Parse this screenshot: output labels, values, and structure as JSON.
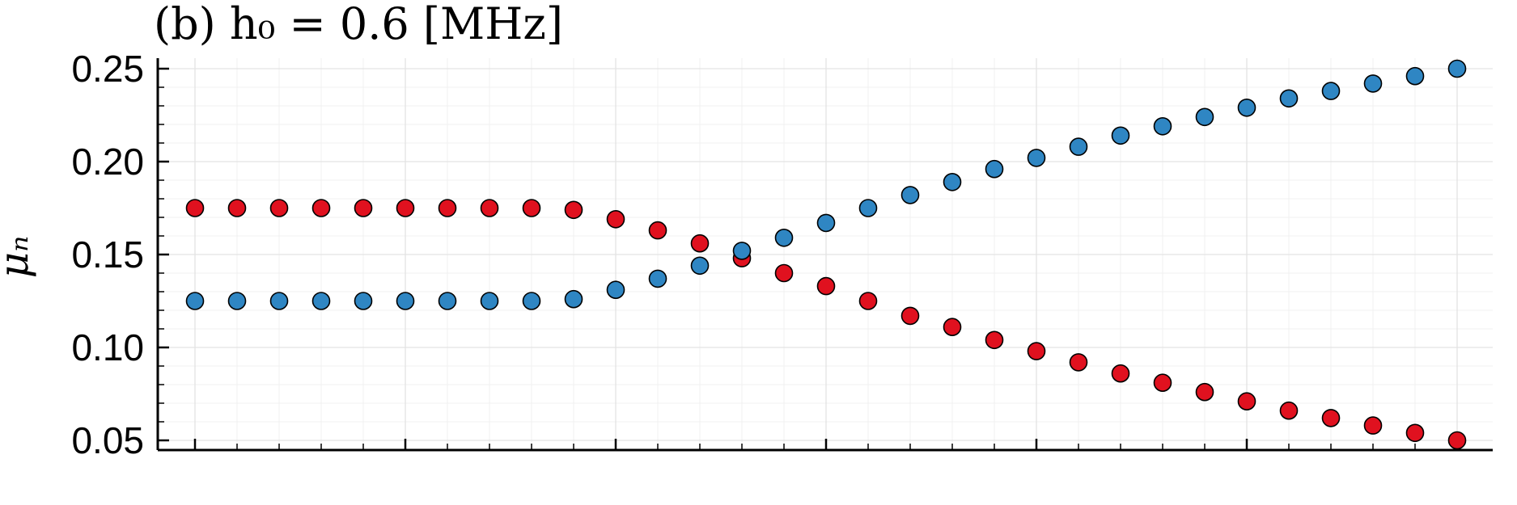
{
  "chart_data": {
    "type": "scatter",
    "title": "(b) h₀ = 0.6 [MHz]",
    "ylabel": "μₙ",
    "xlabel": "",
    "ylim": [
      0.05,
      0.25
    ],
    "xlim": [
      0,
      30
    ],
    "y_ticks": [
      "0.25",
      "0.20",
      "0.15",
      "0.10",
      "0.05"
    ],
    "grid": true,
    "legend": "none",
    "series": [
      {
        "color": "#e0111f",
        "x": [
          0,
          1,
          2,
          3,
          4,
          5,
          6,
          7,
          8,
          9,
          10,
          11,
          12,
          13,
          14,
          15,
          16,
          17,
          18,
          19,
          20,
          21,
          22,
          23,
          24,
          25,
          26,
          27,
          28,
          29,
          30
        ],
        "values": [
          0.175,
          0.175,
          0.175,
          0.175,
          0.175,
          0.175,
          0.175,
          0.175,
          0.175,
          0.174,
          0.169,
          0.163,
          0.156,
          0.148,
          0.14,
          0.133,
          0.125,
          0.117,
          0.111,
          0.104,
          0.098,
          0.092,
          0.086,
          0.081,
          0.076,
          0.071,
          0.066,
          0.062,
          0.058,
          0.054,
          0.05
        ]
      },
      {
        "color": "#2f86c3",
        "x": [
          0,
          1,
          2,
          3,
          4,
          5,
          6,
          7,
          8,
          9,
          10,
          11,
          12,
          13,
          14,
          15,
          16,
          17,
          18,
          19,
          20,
          21,
          22,
          23,
          24,
          25,
          26,
          27,
          28,
          29,
          30
        ],
        "values": [
          0.125,
          0.125,
          0.125,
          0.125,
          0.125,
          0.125,
          0.125,
          0.125,
          0.125,
          0.126,
          0.131,
          0.137,
          0.144,
          0.152,
          0.159,
          0.167,
          0.175,
          0.182,
          0.189,
          0.196,
          0.202,
          0.208,
          0.214,
          0.219,
          0.224,
          0.229,
          0.234,
          0.238,
          0.242,
          0.246,
          0.25
        ]
      }
    ]
  }
}
